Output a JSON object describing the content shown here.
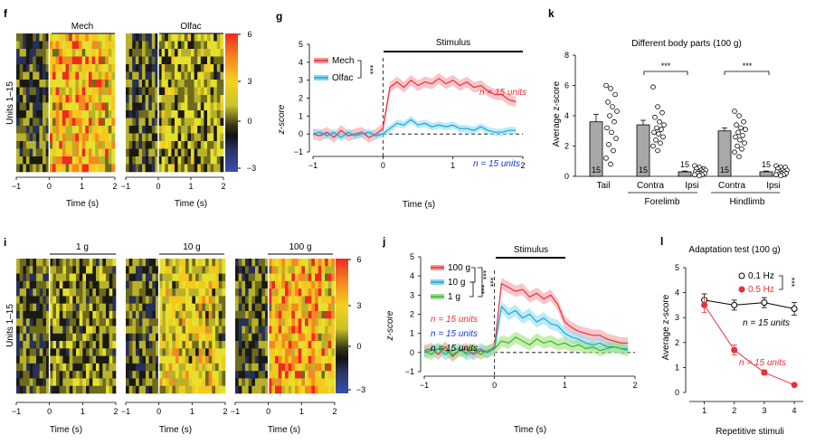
{
  "colors": {
    "mech": "#e8313a",
    "mech_band": "#f4a0a6",
    "olfac": "#1aa8d8",
    "olfac_band": "#8fdcf3",
    "g100": "#e8313a",
    "g10": "#1aa8d8",
    "g1": "#3cb43a",
    "g1_band": "#9fe27a",
    "text_red": "#e8313a",
    "text_blue": "#1b36d1",
    "bar_gray": "#a8a8a8",
    "colorbar": [
      "#2e3a8f",
      "#3a4a78",
      "#1a1a1a",
      "#6b6b1a",
      "#d8d42a",
      "#f5b41e",
      "#ee3a25"
    ]
  },
  "panel_f": {
    "letter": "f",
    "y_label": "Units 1–15",
    "headers": [
      "Mech",
      "Olfac"
    ],
    "x_ticks": [
      "−1",
      "0",
      "1",
      "2"
    ],
    "x_label": "Time (s)",
    "colorbar_ticks": [
      "6",
      "3",
      "0",
      "−3"
    ]
  },
  "panel_i": {
    "letter": "i",
    "y_label": "Units 1–15",
    "headers": [
      "1 g",
      "10 g",
      "100 g"
    ],
    "x_ticks": [
      "−1",
      "0",
      "1",
      "2"
    ],
    "x_label": "Time (s)",
    "colorbar_ticks": [
      "6",
      "3",
      "0",
      "−3"
    ]
  },
  "panel_g": {
    "letter": "g",
    "stimulus_label": "Stimulus",
    "legend": [
      "Mech",
      "Olfac"
    ],
    "significance": "***",
    "y_label": "z-score",
    "x_label": "Time (s)",
    "n_mech": "n = 15 units",
    "n_olfac": "n = 15 units"
  },
  "panel_j": {
    "letter": "j",
    "stimulus_label": "Stimulus",
    "legend": [
      "100 g",
      "10 g",
      "1 g"
    ],
    "significance": [
      "***",
      "***",
      "***"
    ],
    "y_label": "z-score",
    "x_label": "Time (s)",
    "n_labels": [
      "n = 15 units",
      "n = 15 units",
      "n = 15 units"
    ]
  },
  "panel_k": {
    "letter": "k",
    "title": "Different body parts (100 g)",
    "y_label": "Average z-score",
    "significance": [
      "***",
      "***"
    ],
    "bar_labels": [
      "Tail",
      "Contra",
      "Ipsi",
      "Contra",
      "Ipsi"
    ],
    "group_labels": [
      "Forelimb",
      "Hindlimb"
    ]
  },
  "panel_l": {
    "letter": "l",
    "title": "Adaptation test (100 g)",
    "legend": [
      "0.1 Hz",
      "0.5 Hz"
    ],
    "significance": "***",
    "n_01": "n = 15 units",
    "n_05": "n = 15 units",
    "y_label": "Average z-score",
    "x_label": "Repetitive stimuli"
  },
  "chart_data": [
    {
      "id": "g",
      "type": "line",
      "xlabel": "Time (s)",
      "ylabel": "z-score",
      "xlim": [
        -1,
        2
      ],
      "ylim": [
        -1,
        5
      ],
      "x_ticks": [
        -1,
        0,
        1,
        2
      ],
      "y_ticks": [
        -1,
        0,
        1,
        2,
        3,
        4,
        5
      ],
      "stimulus": [
        0,
        2
      ],
      "x": [
        -1.0,
        -0.9,
        -0.8,
        -0.7,
        -0.6,
        -0.5,
        -0.4,
        -0.3,
        -0.2,
        -0.1,
        0.0,
        0.1,
        0.2,
        0.3,
        0.4,
        0.5,
        0.6,
        0.7,
        0.8,
        0.9,
        1.0,
        1.1,
        1.2,
        1.3,
        1.4,
        1.5,
        1.6,
        1.7,
        1.8,
        1.9
      ],
      "series": [
        {
          "name": "Mech",
          "values": [
            0.0,
            -0.1,
            0.1,
            -0.2,
            0.2,
            -0.1,
            0.0,
            0.1,
            -0.2,
            0.0,
            0.3,
            2.6,
            2.9,
            2.6,
            3.0,
            2.7,
            2.9,
            2.8,
            3.1,
            2.8,
            3.0,
            2.7,
            2.9,
            2.6,
            2.7,
            2.4,
            2.2,
            2.2,
            1.9,
            1.8
          ],
          "err": 0.3
        },
        {
          "name": "Olfac",
          "values": [
            0.0,
            0.1,
            -0.1,
            0.1,
            -0.2,
            0.1,
            -0.1,
            0.0,
            0.1,
            -0.1,
            0.0,
            0.3,
            0.6,
            0.5,
            0.8,
            0.5,
            0.6,
            0.4,
            0.5,
            0.4,
            0.5,
            0.3,
            0.3,
            0.2,
            0.4,
            0.2,
            0.1,
            0.1,
            0.2,
            0.2
          ],
          "err": 0.2
        }
      ]
    },
    {
      "id": "j",
      "type": "line",
      "xlabel": "Time (s)",
      "ylabel": "z-score",
      "xlim": [
        -1,
        2
      ],
      "ylim": [
        -1,
        5
      ],
      "x_ticks": [
        -1,
        0,
        1,
        2
      ],
      "y_ticks": [
        -1,
        0,
        1,
        2,
        3,
        4,
        5
      ],
      "stimulus": [
        0,
        1
      ],
      "x": [
        -1.0,
        -0.9,
        -0.8,
        -0.7,
        -0.6,
        -0.5,
        -0.4,
        -0.3,
        -0.2,
        -0.1,
        0.0,
        0.1,
        0.2,
        0.3,
        0.4,
        0.5,
        0.6,
        0.7,
        0.8,
        0.9,
        1.0,
        1.1,
        1.2,
        1.3,
        1.4,
        1.5,
        1.6,
        1.7,
        1.8,
        1.9
      ],
      "series": [
        {
          "name": "100 g",
          "values": [
            0.1,
            0.2,
            -0.1,
            0.3,
            -0.2,
            0.1,
            0.2,
            -0.1,
            0.1,
            0.0,
            0.3,
            3.6,
            3.4,
            3.2,
            3.3,
            2.9,
            3.1,
            2.8,
            3.0,
            2.5,
            1.6,
            1.3,
            1.1,
            1.0,
            0.9,
            0.9,
            0.7,
            0.6,
            0.5,
            0.5
          ],
          "err": 0.3
        },
        {
          "name": "10 g",
          "values": [
            0.0,
            0.1,
            0.2,
            -0.1,
            0.1,
            0.2,
            -0.1,
            0.0,
            0.2,
            0.0,
            0.2,
            2.4,
            2.0,
            2.2,
            1.8,
            2.0,
            1.6,
            1.8,
            1.5,
            1.4,
            1.0,
            0.8,
            0.7,
            0.5,
            0.4,
            0.5,
            0.3,
            0.3,
            0.2,
            0.2
          ],
          "err": 0.3
        },
        {
          "name": "1 g",
          "values": [
            0.1,
            -0.1,
            0.2,
            0.1,
            -0.1,
            0.1,
            0.0,
            0.2,
            -0.1,
            0.1,
            0.2,
            0.6,
            0.5,
            0.8,
            0.6,
            0.4,
            0.7,
            0.5,
            0.6,
            0.4,
            0.5,
            0.3,
            0.4,
            0.2,
            0.3,
            0.1,
            0.2,
            0.3,
            0.2,
            0.1
          ],
          "err": 0.3
        }
      ]
    },
    {
      "id": "k",
      "type": "bar",
      "ylabel": "Average z-score",
      "ylim": [
        0,
        8
      ],
      "y_ticks": [
        0,
        2,
        4,
        6,
        8
      ],
      "categories": [
        "Tail",
        "Contra",
        "Ipsi",
        "Contra",
        "Ipsi"
      ],
      "values": [
        3.6,
        3.4,
        0.3,
        3.0,
        0.3
      ],
      "errors": [
        0.5,
        0.3,
        0.05,
        0.2,
        0.05
      ],
      "n": [
        "15",
        "15",
        "15",
        "15",
        "15"
      ],
      "points": [
        [
          6.0,
          5.8,
          5.4,
          4.9,
          4.6,
          4.3,
          4.0,
          3.6,
          3.2,
          2.9,
          2.5,
          2.1,
          1.7,
          1.2,
          0.8
        ],
        [
          5.9,
          4.6,
          4.2,
          3.9,
          3.6,
          3.4,
          3.2,
          3.1,
          2.9,
          2.8,
          2.6,
          2.4,
          2.2,
          2.0,
          1.7
        ],
        [
          0.7,
          0.6,
          0.5,
          0.5,
          0.4,
          0.4,
          0.3,
          0.3,
          0.3,
          0.2,
          0.2,
          0.2,
          0.1,
          0.1,
          0.05
        ],
        [
          4.3,
          4.0,
          3.6,
          3.4,
          3.2,
          3.1,
          2.9,
          2.7,
          2.6,
          2.4,
          2.2,
          2.0,
          1.8,
          1.6,
          1.3
        ],
        [
          0.7,
          0.6,
          0.6,
          0.5,
          0.4,
          0.4,
          0.3,
          0.3,
          0.3,
          0.2,
          0.2,
          0.15,
          0.1,
          0.1,
          0.05
        ]
      ]
    },
    {
      "id": "l",
      "type": "line",
      "xlabel": "Repetitive stimuli",
      "ylabel": "Average z-score",
      "xlim": [
        0.5,
        4.3
      ],
      "ylim": [
        0,
        5
      ],
      "x_ticks": [
        1,
        2,
        3,
        4
      ],
      "y_ticks": [
        0,
        1,
        2,
        3,
        4,
        5
      ],
      "x": [
        1,
        2,
        3,
        4
      ],
      "series": [
        {
          "name": "0.1 Hz",
          "values": [
            3.7,
            3.5,
            3.6,
            3.35
          ],
          "err": [
            0.25,
            0.2,
            0.2,
            0.25
          ]
        },
        {
          "name": "0.5 Hz",
          "values": [
            3.5,
            1.7,
            0.8,
            0.3
          ],
          "err": [
            0.3,
            0.2,
            0.1,
            0.05
          ]
        }
      ]
    }
  ]
}
